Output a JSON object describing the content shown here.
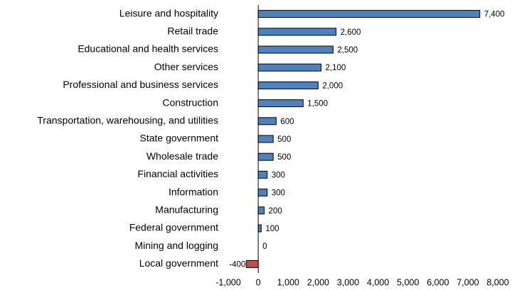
{
  "chart_data": {
    "type": "barh",
    "categories": [
      "Leisure and hospitality",
      "Retail trade",
      "Educational and health services",
      "Other services",
      "Professional and business services",
      "Construction",
      "Transportation, warehousing, and utilities",
      "State government",
      "Wholesale trade",
      "Financial activities",
      "Information",
      "Manufacturing",
      "Federal government",
      "Mining and logging",
      "Local government"
    ],
    "values": [
      7400,
      2600,
      2500,
      2100,
      2000,
      1500,
      600,
      500,
      500,
      300,
      300,
      200,
      100,
      0,
      -400
    ],
    "value_labels": [
      "7,400",
      "2,600",
      "2,500",
      "2,100",
      "2,000",
      "1,500",
      "600",
      "500",
      "500",
      "300",
      "300",
      "200",
      "100",
      "0",
      "-400"
    ],
    "color": "#4f81bd",
    "negative_color": "#c0504d",
    "xlim": [
      -1000,
      8000
    ],
    "xticks": [
      {
        "value": -1000,
        "label": "-1,000"
      },
      0,
      {
        "value": 1000,
        "label": "1,000"
      },
      {
        "value": 2000,
        "label": "2,000"
      },
      {
        "value": 3000,
        "label": "3,000"
      },
      {
        "value": 4000,
        "label": "4,000"
      },
      {
        "value": 5000,
        "label": "5,000"
      },
      {
        "value": 6000,
        "label": "6,000"
      },
      {
        "value": 7000,
        "label": "7,000"
      },
      {
        "value": 8000,
        "label": "8,000"
      }
    ],
    "grid": false
  }
}
